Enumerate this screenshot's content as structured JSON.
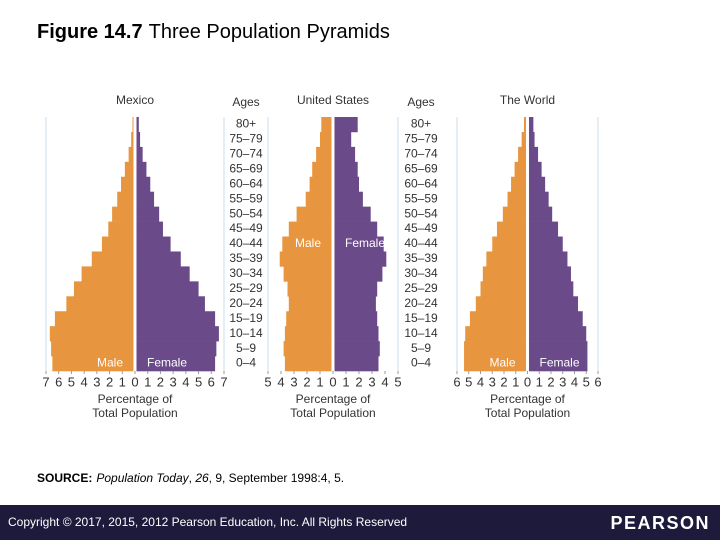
{
  "title": {
    "figure": "Figure 14.7",
    "text": "Three Population Pyramids"
  },
  "source": [
    "SOURCE:",
    "Population Today",
    ", ",
    "26",
    ", 9, September 1998:4, 5."
  ],
  "footer": {
    "copyright": "Copyright © 2017, 2015, 2012 Pearson Education, Inc. All Rights Reserved",
    "logo": "PEARSON"
  },
  "chart_data": [
    {
      "type": "pyramid",
      "title": "Mexico",
      "ages_label": "Ages",
      "legend": "bottom",
      "categories": [
        "0–4",
        "5–9",
        "10–14",
        "15–19",
        "20–24",
        "25–29",
        "30–34",
        "35–39",
        "40–44",
        "45–49",
        "50–54",
        "55–59",
        "60–64",
        "65–69",
        "70–74",
        "75–79",
        "80+"
      ],
      "series": [
        {
          "name": "Male",
          "color": "#e8953f",
          "values": [
            6.5,
            6.6,
            6.7,
            6.3,
            5.4,
            4.8,
            4.2,
            3.4,
            2.6,
            2.1,
            1.8,
            1.4,
            1.1,
            0.8,
            0.5,
            0.3,
            0.2
          ]
        },
        {
          "name": "Female",
          "color": "#6b4a8a",
          "values": [
            6.3,
            6.4,
            6.6,
            6.3,
            5.5,
            5.0,
            4.3,
            3.6,
            2.8,
            2.2,
            1.9,
            1.5,
            1.2,
            0.9,
            0.6,
            0.4,
            0.3
          ]
        }
      ],
      "xlim": [
        -7,
        7
      ],
      "xticks": [
        {
          "value": -7,
          "label": "7"
        },
        {
          "value": -6,
          "label": "6"
        },
        {
          "value": -5,
          "label": "5"
        },
        {
          "value": -4,
          "label": "4"
        },
        {
          "value": -3,
          "label": "3"
        },
        {
          "value": -2,
          "label": "2"
        },
        {
          "value": -1,
          "label": "1"
        },
        0,
        1,
        2,
        3,
        4,
        5,
        6,
        7
      ],
      "xlabel": [
        "Percentage of",
        "Total Population"
      ]
    },
    {
      "type": "pyramid",
      "title": "United States",
      "legend": "center",
      "categories": [
        "0–4",
        "5–9",
        "10–14",
        "15–19",
        "20–24",
        "25–29",
        "30–34",
        "35–39",
        "40–44",
        "45–49",
        "50–54",
        "55–59",
        "60–64",
        "65–69",
        "70–74",
        "75–79",
        "80+"
      ],
      "series": [
        {
          "name": "Male",
          "color": "#e8953f",
          "values": [
            3.7,
            3.8,
            3.7,
            3.6,
            3.4,
            3.5,
            3.8,
            4.1,
            3.9,
            3.4,
            2.8,
            2.1,
            1.8,
            1.6,
            1.3,
            1.0,
            0.9
          ]
        },
        {
          "name": "Female",
          "color": "#6b4a8a",
          "values": [
            3.5,
            3.6,
            3.5,
            3.4,
            3.3,
            3.4,
            3.8,
            4.1,
            3.9,
            3.4,
            2.9,
            2.3,
            2.0,
            1.9,
            1.7,
            1.4,
            1.9
          ]
        }
      ],
      "xlim": [
        -5,
        5
      ],
      "xticks": [
        {
          "value": -5,
          "label": "5"
        },
        {
          "value": -4,
          "label": "4"
        },
        {
          "value": -3,
          "label": "3"
        },
        {
          "value": -2,
          "label": "2"
        },
        {
          "value": -1,
          "label": "1"
        },
        0,
        1,
        2,
        3,
        4,
        5
      ],
      "xlabel": [
        "Percentage of",
        "Total Population"
      ]
    },
    {
      "type": "pyramid",
      "title": "The World",
      "ages_label": "Ages",
      "legend": "bottom",
      "categories": [
        "0–4",
        "5–9",
        "10–14",
        "15–19",
        "20–24",
        "25–29",
        "30–34",
        "35–39",
        "40–44",
        "45–49",
        "50–54",
        "55–59",
        "60–64",
        "65–69",
        "70–74",
        "75–79",
        "80+"
      ],
      "series": [
        {
          "name": "Male",
          "color": "#e8953f",
          "values": [
            5.4,
            5.4,
            5.3,
            4.9,
            4.4,
            4.0,
            3.8,
            3.5,
            3.0,
            2.6,
            2.1,
            1.7,
            1.4,
            1.1,
            0.8,
            0.5,
            0.3
          ]
        },
        {
          "name": "Female",
          "color": "#6b4a8a",
          "values": [
            5.1,
            5.1,
            5.0,
            4.7,
            4.3,
            3.9,
            3.7,
            3.4,
            3.0,
            2.6,
            2.1,
            1.8,
            1.5,
            1.2,
            0.9,
            0.6,
            0.5
          ]
        }
      ],
      "xlim": [
        -6,
        6
      ],
      "xticks": [
        {
          "value": -6,
          "label": "6"
        },
        {
          "value": -5,
          "label": "5"
        },
        {
          "value": -4,
          "label": "4"
        },
        {
          "value": -3,
          "label": "3"
        },
        {
          "value": -2,
          "label": "2"
        },
        {
          "value": -1,
          "label": "1"
        },
        0,
        1,
        2,
        3,
        4,
        5,
        6
      ],
      "xlabel": [
        "Percentage of",
        "Total Population"
      ]
    }
  ]
}
